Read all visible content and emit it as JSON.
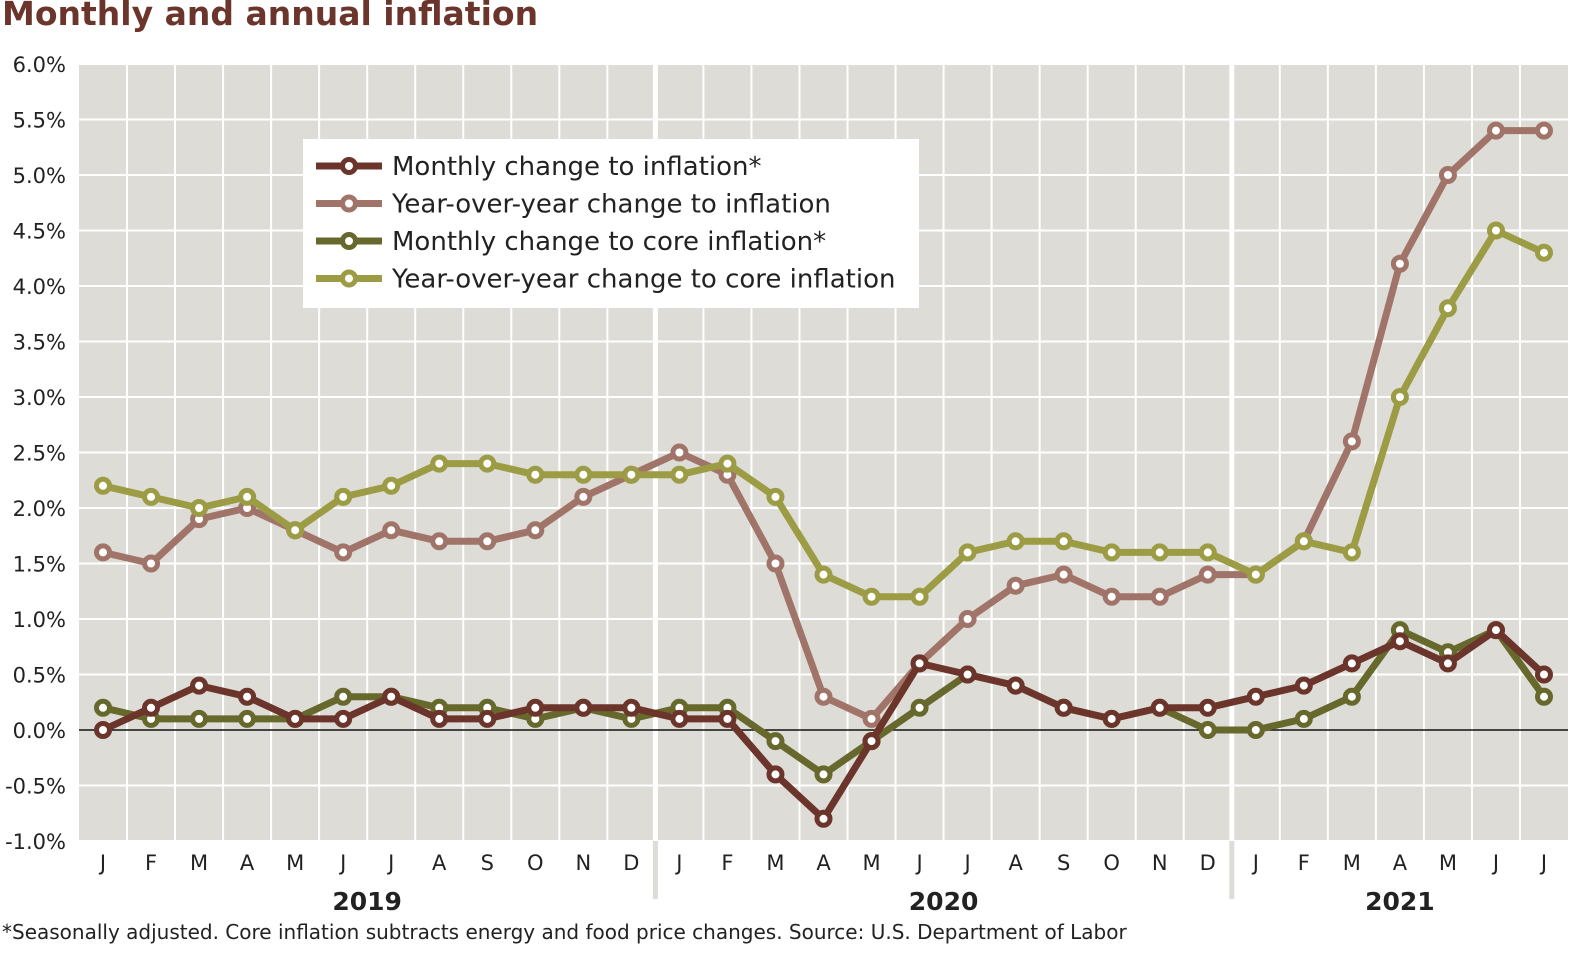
{
  "title": "Monthly and annual inflation",
  "footnote": "*Seasonally adjusted. Core inflation subtracts energy and food price changes. Source: U.S. Department of Labor",
  "chart_data": {
    "type": "line",
    "title": "Monthly and annual inflation",
    "x": [
      "J",
      "F",
      "M",
      "A",
      "M",
      "J",
      "J",
      "A",
      "S",
      "O",
      "N",
      "D",
      "J",
      "F",
      "M",
      "A",
      "M",
      "J",
      "J",
      "A",
      "S",
      "O",
      "N",
      "D",
      "J",
      "F",
      "M",
      "A",
      "M",
      "J",
      "J"
    ],
    "years": [
      {
        "label": "2019",
        "start": 0,
        "end": 11
      },
      {
        "label": "2020",
        "start": 12,
        "end": 23
      },
      {
        "label": "2021",
        "start": 24,
        "end": 30
      }
    ],
    "ylim": [
      -1.0,
      6.0
    ],
    "yticks": [
      "6.0%",
      "5.5%",
      "5.0%",
      "4.5%",
      "4.0%",
      "3.5%",
      "3.0%",
      "2.5%",
      "2.0%",
      "1.5%",
      "1.0%",
      "0.5%",
      "0.0%",
      "-0.5%",
      "-1.0%"
    ],
    "ytick_values": [
      6.0,
      5.5,
      5.0,
      4.5,
      4.0,
      3.5,
      3.0,
      2.5,
      2.0,
      1.5,
      1.0,
      0.5,
      0.0,
      -0.5,
      -1.0
    ],
    "grid": true,
    "legend_position": "top-left",
    "series": [
      {
        "name": "Monthly change to inflation*",
        "color": "#6b352b",
        "values": [
          0.0,
          0.2,
          0.4,
          0.3,
          0.1,
          0.1,
          0.3,
          0.1,
          0.1,
          0.2,
          0.2,
          0.2,
          0.1,
          0.1,
          -0.4,
          -0.8,
          -0.1,
          0.6,
          0.5,
          0.4,
          0.2,
          0.1,
          0.2,
          0.2,
          0.3,
          0.4,
          0.6,
          0.8,
          0.6,
          0.9,
          0.5
        ]
      },
      {
        "name": "Year-over-year change to inflation",
        "color": "#a07468",
        "values": [
          1.6,
          1.5,
          1.9,
          2.0,
          1.8,
          1.6,
          1.8,
          1.7,
          1.7,
          1.8,
          2.1,
          2.3,
          2.5,
          2.3,
          1.5,
          0.3,
          0.1,
          0.6,
          1.0,
          1.3,
          1.4,
          1.2,
          1.2,
          1.4,
          1.4,
          1.7,
          2.6,
          4.2,
          5.0,
          5.4,
          5.4
        ]
      },
      {
        "name": "Monthly change to core inflation*",
        "color": "#67682c",
        "values": [
          0.2,
          0.1,
          0.1,
          0.1,
          0.1,
          0.3,
          0.3,
          0.2,
          0.2,
          0.1,
          0.2,
          0.1,
          0.2,
          0.2,
          -0.1,
          -0.4,
          -0.1,
          0.2,
          0.5,
          0.4,
          0.2,
          0.1,
          0.2,
          0.0,
          0.0,
          0.1,
          0.3,
          0.9,
          0.7,
          0.9,
          0.3
        ]
      },
      {
        "name": "Year-over-year change to core inflation",
        "color": "#9b9c44",
        "values": [
          2.2,
          2.1,
          2.0,
          2.1,
          1.8,
          2.1,
          2.2,
          2.4,
          2.4,
          2.3,
          2.3,
          2.3,
          2.3,
          2.4,
          2.1,
          1.4,
          1.2,
          1.2,
          1.6,
          1.7,
          1.7,
          1.6,
          1.6,
          1.6,
          1.4,
          1.7,
          1.6,
          3.0,
          3.8,
          4.5,
          4.3
        ]
      }
    ]
  }
}
